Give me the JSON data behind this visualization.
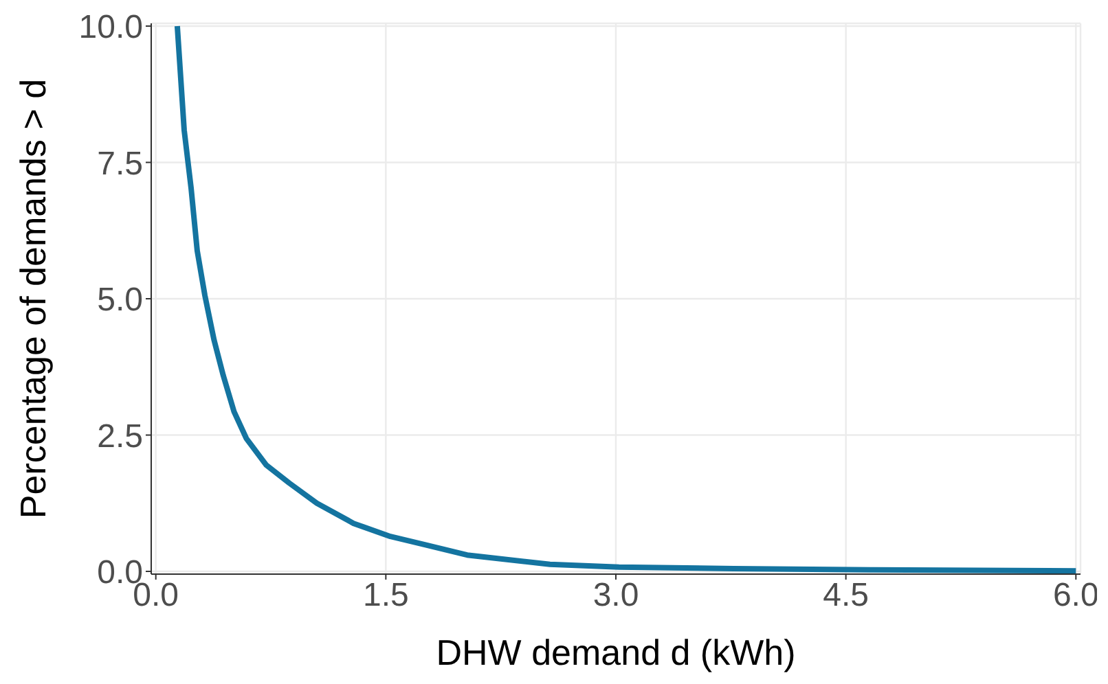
{
  "chart_data": {
    "type": "line",
    "xlabel": "DHW demand d (kWh)",
    "ylabel": "Percentage of demands > d",
    "xlim": [
      -0.03,
      6.03
    ],
    "ylim": [
      -0.05,
      10.05
    ],
    "xticks": [
      {
        "value": 0,
        "label": "0.0"
      },
      1.5,
      {
        "value": 3,
        "label": "3.0"
      },
      4.5,
      {
        "value": 6,
        "label": "6.0"
      }
    ],
    "yticks": [
      {
        "value": 0,
        "label": "0.0"
      },
      2.5,
      {
        "value": 5,
        "label": "5.0"
      },
      7.5,
      {
        "value": 10,
        "label": "10.0"
      }
    ],
    "grid": true,
    "marker": "none",
    "line_style": "solid",
    "series": [
      {
        "color": "#1474a0",
        "x": [
          0.14,
          0.185,
          0.23,
          0.27,
          0.32,
          0.38,
          0.44,
          0.51,
          0.59,
          0.72,
          0.87,
          1.05,
          1.29,
          1.53,
          1.74,
          2.03,
          2.12,
          2.57,
          3.02,
          3.77,
          4.66,
          6.0
        ],
        "values": [
          10.0,
          8.09,
          7.03,
          5.88,
          5.06,
          4.24,
          3.59,
          2.93,
          2.44,
          1.95,
          1.62,
          1.25,
          0.88,
          0.64,
          0.5,
          0.3,
          0.27,
          0.13,
          0.08,
          0.05,
          0.03,
          0.01
        ]
      }
    ]
  }
}
